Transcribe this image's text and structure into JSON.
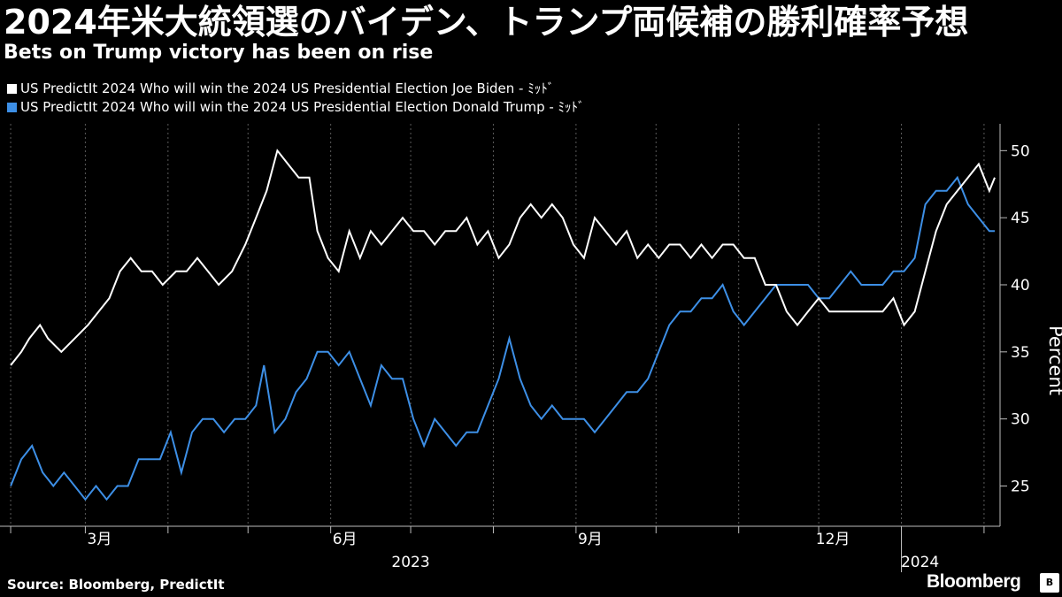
{
  "header": {
    "title": "2024年米大統領選のバイデン、トランプ両候補の勝利確率予想",
    "subtitle": "Bets on Trump victory has been on rise"
  },
  "footer": {
    "source": "Source: Bloomberg, PredictIt",
    "brand": "Bloomberg",
    "badge": "B"
  },
  "colors": {
    "background": "#000000",
    "biden": "#ffffff",
    "trump": "#3d8fe6",
    "grid": "#555555"
  },
  "chart_data": {
    "type": "line",
    "ylabel": "Percent",
    "ylim": [
      22,
      52
    ],
    "yticks": [
      25,
      30,
      35,
      40,
      45,
      50
    ],
    "grid": "vertical dotted",
    "legend": "top-left",
    "x_tick_labels": [
      {
        "label": "3月",
        "date": "2023-03-01"
      },
      {
        "label": "6月",
        "date": "2023-06-01"
      },
      {
        "label": "9月",
        "date": "2023-09-01"
      },
      {
        "label": "12月",
        "date": "2023-12-01"
      }
    ],
    "x_year_labels": [
      {
        "label": "2023",
        "date": "2023-07-01"
      },
      {
        "label": "2024",
        "date": "2024-01-08"
      }
    ],
    "x_range": [
      "2023-01-28",
      "2024-02-07"
    ],
    "series": [
      {
        "name": "US PredictIt 2024 Who will win the 2024 US Presidential Election Joe Biden - ﾐｯﾄﾞ",
        "points": [
          [
            "2023-02-01",
            34
          ],
          [
            "2023-02-05",
            35
          ],
          [
            "2023-02-08",
            36
          ],
          [
            "2023-02-12",
            37
          ],
          [
            "2023-02-15",
            36
          ],
          [
            "2023-02-20",
            35
          ],
          [
            "2023-02-25",
            36
          ],
          [
            "2023-03-02",
            37
          ],
          [
            "2023-03-06",
            38
          ],
          [
            "2023-03-10",
            39
          ],
          [
            "2023-03-14",
            41
          ],
          [
            "2023-03-18",
            42
          ],
          [
            "2023-03-22",
            41
          ],
          [
            "2023-03-26",
            41
          ],
          [
            "2023-03-30",
            40
          ],
          [
            "2023-04-04",
            41
          ],
          [
            "2023-04-08",
            41
          ],
          [
            "2023-04-12",
            42
          ],
          [
            "2023-04-16",
            41
          ],
          [
            "2023-04-20",
            40
          ],
          [
            "2023-04-25",
            41
          ],
          [
            "2023-04-30",
            43
          ],
          [
            "2023-05-04",
            45
          ],
          [
            "2023-05-08",
            47
          ],
          [
            "2023-05-12",
            50
          ],
          [
            "2023-05-16",
            49
          ],
          [
            "2023-05-20",
            48
          ],
          [
            "2023-05-24",
            48
          ],
          [
            "2023-05-27",
            44
          ],
          [
            "2023-05-31",
            42
          ],
          [
            "2023-06-04",
            41
          ],
          [
            "2023-06-08",
            44
          ],
          [
            "2023-06-12",
            42
          ],
          [
            "2023-06-16",
            44
          ],
          [
            "2023-06-20",
            43
          ],
          [
            "2023-06-24",
            44
          ],
          [
            "2023-06-28",
            45
          ],
          [
            "2023-07-02",
            44
          ],
          [
            "2023-07-06",
            44
          ],
          [
            "2023-07-10",
            43
          ],
          [
            "2023-07-14",
            44
          ],
          [
            "2023-07-18",
            44
          ],
          [
            "2023-07-22",
            45
          ],
          [
            "2023-07-26",
            43
          ],
          [
            "2023-07-30",
            44
          ],
          [
            "2023-08-03",
            42
          ],
          [
            "2023-08-07",
            43
          ],
          [
            "2023-08-11",
            45
          ],
          [
            "2023-08-15",
            46
          ],
          [
            "2023-08-19",
            45
          ],
          [
            "2023-08-23",
            46
          ],
          [
            "2023-08-27",
            45
          ],
          [
            "2023-08-31",
            43
          ],
          [
            "2023-09-04",
            42
          ],
          [
            "2023-09-08",
            45
          ],
          [
            "2023-09-12",
            44
          ],
          [
            "2023-09-16",
            43
          ],
          [
            "2023-09-20",
            44
          ],
          [
            "2023-09-24",
            42
          ],
          [
            "2023-09-28",
            43
          ],
          [
            "2023-10-02",
            42
          ],
          [
            "2023-10-06",
            43
          ],
          [
            "2023-10-10",
            43
          ],
          [
            "2023-10-14",
            42
          ],
          [
            "2023-10-18",
            43
          ],
          [
            "2023-10-22",
            42
          ],
          [
            "2023-10-26",
            43
          ],
          [
            "2023-10-30",
            43
          ],
          [
            "2023-11-03",
            42
          ],
          [
            "2023-11-07",
            42
          ],
          [
            "2023-11-11",
            40
          ],
          [
            "2023-11-15",
            40
          ],
          [
            "2023-11-19",
            38
          ],
          [
            "2023-11-23",
            37
          ],
          [
            "2023-11-27",
            38
          ],
          [
            "2023-12-01",
            39
          ],
          [
            "2023-12-05",
            38
          ],
          [
            "2023-12-09",
            38
          ],
          [
            "2023-12-13",
            38
          ],
          [
            "2023-12-17",
            38
          ],
          [
            "2023-12-21",
            38
          ],
          [
            "2023-12-25",
            38
          ],
          [
            "2023-12-29",
            39
          ],
          [
            "2024-01-02",
            37
          ],
          [
            "2024-01-06",
            38
          ],
          [
            "2024-01-10",
            41
          ],
          [
            "2024-01-14",
            44
          ],
          [
            "2024-01-18",
            46
          ],
          [
            "2024-01-22",
            47
          ],
          [
            "2024-01-26",
            48
          ],
          [
            "2024-01-30",
            49
          ],
          [
            "2024-02-03",
            47
          ],
          [
            "2024-02-05",
            48
          ]
        ]
      },
      {
        "name": "US PredictIt 2024 Who will win the 2024 US Presidential Election Donald Trump - ﾐｯﾄﾞ",
        "points": [
          [
            "2023-02-01",
            25
          ],
          [
            "2023-02-05",
            27
          ],
          [
            "2023-02-09",
            28
          ],
          [
            "2023-02-13",
            26
          ],
          [
            "2023-02-17",
            25
          ],
          [
            "2023-02-21",
            26
          ],
          [
            "2023-02-25",
            25
          ],
          [
            "2023-03-01",
            24
          ],
          [
            "2023-03-05",
            25
          ],
          [
            "2023-03-09",
            24
          ],
          [
            "2023-03-13",
            25
          ],
          [
            "2023-03-17",
            25
          ],
          [
            "2023-03-21",
            27
          ],
          [
            "2023-03-25",
            27
          ],
          [
            "2023-03-29",
            27
          ],
          [
            "2023-04-02",
            29
          ],
          [
            "2023-04-06",
            26
          ],
          [
            "2023-04-10",
            29
          ],
          [
            "2023-04-14",
            30
          ],
          [
            "2023-04-18",
            30
          ],
          [
            "2023-04-22",
            29
          ],
          [
            "2023-04-26",
            30
          ],
          [
            "2023-04-30",
            30
          ],
          [
            "2023-05-04",
            31
          ],
          [
            "2023-05-07",
            34
          ],
          [
            "2023-05-11",
            29
          ],
          [
            "2023-05-15",
            30
          ],
          [
            "2023-05-19",
            32
          ],
          [
            "2023-05-23",
            33
          ],
          [
            "2023-05-27",
            35
          ],
          [
            "2023-05-31",
            35
          ],
          [
            "2023-06-04",
            34
          ],
          [
            "2023-06-08",
            35
          ],
          [
            "2023-06-12",
            33
          ],
          [
            "2023-06-16",
            31
          ],
          [
            "2023-06-20",
            34
          ],
          [
            "2023-06-24",
            33
          ],
          [
            "2023-06-28",
            33
          ],
          [
            "2023-07-02",
            30
          ],
          [
            "2023-07-06",
            28
          ],
          [
            "2023-07-10",
            30
          ],
          [
            "2023-07-14",
            29
          ],
          [
            "2023-07-18",
            28
          ],
          [
            "2023-07-22",
            29
          ],
          [
            "2023-07-26",
            29
          ],
          [
            "2023-07-30",
            31
          ],
          [
            "2023-08-03",
            33
          ],
          [
            "2023-08-07",
            36
          ],
          [
            "2023-08-11",
            33
          ],
          [
            "2023-08-15",
            31
          ],
          [
            "2023-08-19",
            30
          ],
          [
            "2023-08-23",
            31
          ],
          [
            "2023-08-27",
            30
          ],
          [
            "2023-08-31",
            30
          ],
          [
            "2023-09-04",
            30
          ],
          [
            "2023-09-08",
            29
          ],
          [
            "2023-09-12",
            30
          ],
          [
            "2023-09-16",
            31
          ],
          [
            "2023-09-20",
            32
          ],
          [
            "2023-09-24",
            32
          ],
          [
            "2023-09-28",
            33
          ],
          [
            "2023-10-02",
            35
          ],
          [
            "2023-10-06",
            37
          ],
          [
            "2023-10-10",
            38
          ],
          [
            "2023-10-14",
            38
          ],
          [
            "2023-10-18",
            39
          ],
          [
            "2023-10-22",
            39
          ],
          [
            "2023-10-26",
            40
          ],
          [
            "2023-10-30",
            38
          ],
          [
            "2023-11-03",
            37
          ],
          [
            "2023-11-07",
            38
          ],
          [
            "2023-11-11",
            39
          ],
          [
            "2023-11-15",
            40
          ],
          [
            "2023-11-19",
            40
          ],
          [
            "2023-11-23",
            40
          ],
          [
            "2023-11-27",
            40
          ],
          [
            "2023-12-01",
            39
          ],
          [
            "2023-12-05",
            39
          ],
          [
            "2023-12-09",
            40
          ],
          [
            "2023-12-13",
            41
          ],
          [
            "2023-12-17",
            40
          ],
          [
            "2023-12-21",
            40
          ],
          [
            "2023-12-25",
            40
          ],
          [
            "2023-12-29",
            41
          ],
          [
            "2024-01-02",
            41
          ],
          [
            "2024-01-06",
            42
          ],
          [
            "2024-01-10",
            46
          ],
          [
            "2024-01-14",
            47
          ],
          [
            "2024-01-18",
            47
          ],
          [
            "2024-01-22",
            48
          ],
          [
            "2024-01-26",
            46
          ],
          [
            "2024-01-30",
            45
          ],
          [
            "2024-02-03",
            44
          ],
          [
            "2024-02-05",
            44
          ]
        ]
      }
    ]
  }
}
